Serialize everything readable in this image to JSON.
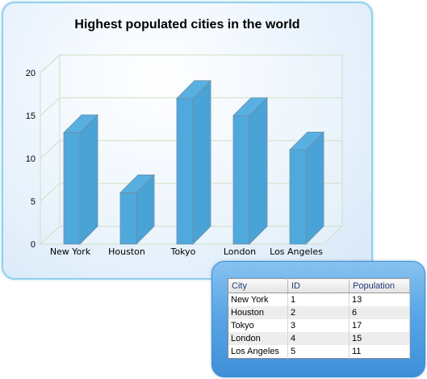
{
  "chart_data": {
    "type": "bar",
    "title": "Highest populated cities in the world",
    "categories": [
      "New York",
      "Houston",
      "Tokyo",
      "London",
      "Los Angeles"
    ],
    "values": [
      13,
      6,
      17,
      15,
      11
    ],
    "ylim": [
      0,
      20
    ],
    "yticks": [
      0,
      5,
      10,
      15,
      20
    ],
    "grid": true,
    "bar_color": "#4fa9dd",
    "style": "3d"
  },
  "grid": {
    "columns": [
      "City",
      "ID",
      "Population"
    ],
    "rows": [
      {
        "city": "New York",
        "id": "1",
        "population": "13"
      },
      {
        "city": "Houston",
        "id": "2",
        "population": "6"
      },
      {
        "city": "Tokyo",
        "id": "3",
        "population": "17"
      },
      {
        "city": "London",
        "id": "4",
        "population": "15"
      },
      {
        "city": "Los Angeles",
        "id": "5",
        "population": "11"
      }
    ]
  }
}
